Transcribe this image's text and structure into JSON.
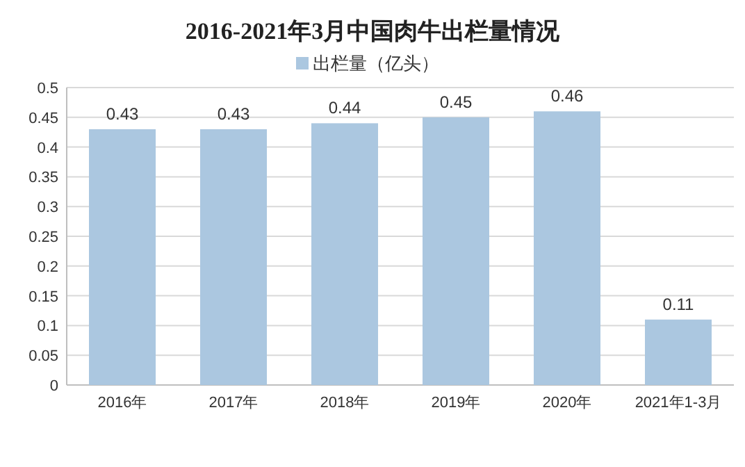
{
  "chart_data": {
    "type": "bar",
    "title": "2016-2021年3月中国肉牛出栏量情况",
    "categories": [
      "2016年",
      "2017年",
      "2018年",
      "2019年",
      "2020年",
      "2021年1-3月"
    ],
    "series": [
      {
        "name": "出栏量（亿头）",
        "color": "#abc7e0",
        "values": [
          0.43,
          0.43,
          0.44,
          0.45,
          0.46,
          0.11
        ]
      }
    ],
    "ylim": [
      0,
      0.5
    ],
    "yticks": [
      0,
      0.05,
      0.1,
      0.15,
      0.2,
      0.25,
      0.3,
      0.35,
      0.4,
      0.45,
      0.5
    ],
    "grid": "y",
    "legend": "top",
    "data_labels": true
  }
}
